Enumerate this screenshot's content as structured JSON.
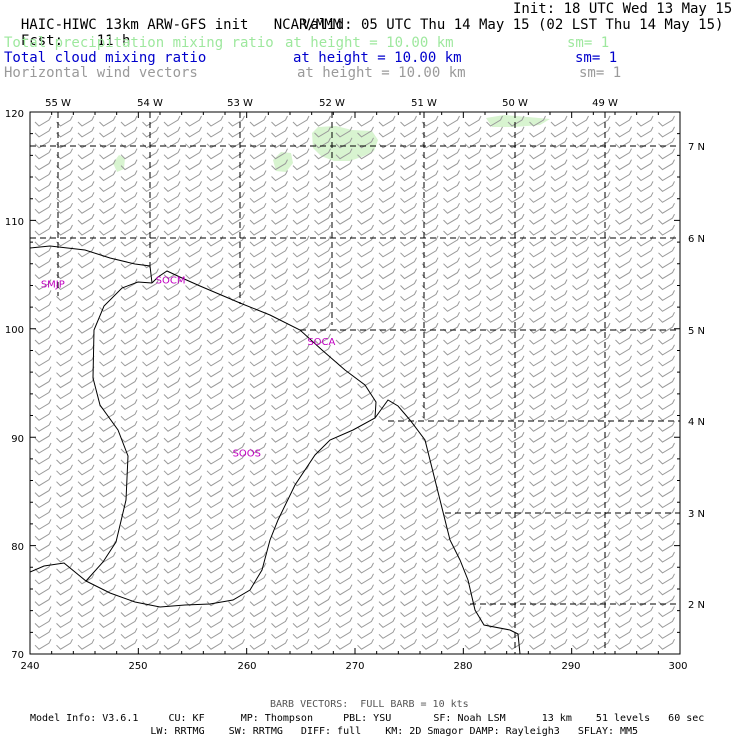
{
  "header": {
    "model_title": "HAIC-HIWC 13km ARW-GFS init",
    "center": "NCAR/MMM",
    "init": "Init: 18 UTC Wed 13 May 15",
    "fcst_label": "Fcst:",
    "fcst_value": "11 h",
    "valid": "Valid: 05 UTC Thu 14 May 15 (02 LST Thu 14 May 15)",
    "fields": [
      {
        "name": "Total precipitation mixing ratio",
        "height": "at height = 10.00 km",
        "sm": "sm= 1",
        "color": "#9ee89e"
      },
      {
        "name": "Total cloud mixing ratio",
        "height": "at height = 10.00 km",
        "sm": "sm= 1",
        "color": "#0000cc"
      },
      {
        "name": "Horizontal wind vectors",
        "height": "at height = 10.00 km",
        "sm": "sm= 1",
        "color": "#9a9a9a"
      }
    ]
  },
  "map": {
    "x_ticks": [
      "240",
      "250",
      "260",
      "270",
      "280",
      "290",
      "300"
    ],
    "y_ticks": [
      "70",
      "80",
      "90",
      "100",
      "110",
      "120"
    ],
    "lon_labels": [
      "55 W",
      "54 W",
      "53 W",
      "52 W",
      "51 W",
      "50 W",
      "49 W"
    ],
    "lat_labels": [
      "7 N",
      "6 N",
      "5 N",
      "4 N",
      "3 N",
      "2 N"
    ],
    "stations": [
      {
        "id": "SMJP",
        "x": 241.0,
        "y": 103.8
      },
      {
        "id": "SOCM",
        "x": 251.6,
        "y": 104.2
      },
      {
        "id": "SOCA",
        "x": 265.6,
        "y": 98.5
      },
      {
        "id": "SOOS",
        "x": 258.7,
        "y": 88.2
      }
    ],
    "wind_barb_color": "#9a9a9a",
    "coast_color": "#000000",
    "precip_color": "#d8f4d0"
  },
  "footer": {
    "barb_note": "BARB VECTORS:  FULL BARB = 10 kts",
    "line1": "Model Info: V3.6.1     CU: KF      MP: Thompson     PBL: YSU       SF: Noah LSM      13 km    51 levels   60 sec",
    "line2": "                    LW: RRTMG    SW: RRTMG   DIFF: full    KM: 2D Smagor DAMP: Rayleigh3   SFLAY: MM5"
  }
}
